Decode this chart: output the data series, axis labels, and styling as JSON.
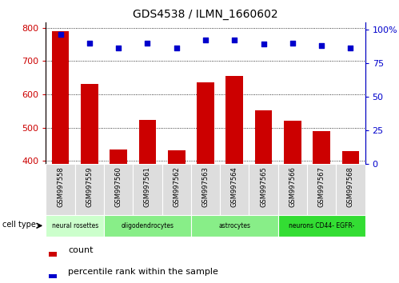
{
  "title": "GDS4538 / ILMN_1660602",
  "samples": [
    "GSM997558",
    "GSM997559",
    "GSM997560",
    "GSM997561",
    "GSM997562",
    "GSM997563",
    "GSM997564",
    "GSM997565",
    "GSM997566",
    "GSM997567",
    "GSM997568"
  ],
  "bar_values": [
    790,
    630,
    435,
    522,
    432,
    635,
    655,
    552,
    520,
    490,
    428
  ],
  "dot_values": [
    96,
    90,
    86,
    90,
    86,
    92,
    92,
    89,
    90,
    88,
    86
  ],
  "bar_color": "#cc0000",
  "dot_color": "#0000cc",
  "ylim_left": [
    390,
    815
  ],
  "ylim_right": [
    0,
    105
  ],
  "yticks_left": [
    400,
    500,
    600,
    700,
    800
  ],
  "yticks_right": [
    0,
    25,
    50,
    75,
    100
  ],
  "ytick_labels_right": [
    "0",
    "25",
    "50",
    "75",
    "100%"
  ],
  "cell_type_label": "cell type",
  "legend_bar_label": "count",
  "legend_dot_label": "percentile rank within the sample",
  "tick_color_left": "#cc0000",
  "tick_color_right": "#0000cc",
  "xtick_bg": "#dddddd",
  "cell_groups": [
    {
      "label": "neural rosettes",
      "start": 0,
      "end": 2,
      "color": "#ccffcc"
    },
    {
      "label": "oligodendrocytes",
      "start": 2,
      "end": 5,
      "color": "#88ee88"
    },
    {
      "label": "astrocytes",
      "start": 5,
      "end": 8,
      "color": "#88ee88"
    },
    {
      "label": "neurons CD44- EGFR-",
      "start": 8,
      "end": 11,
      "color": "#33dd33"
    }
  ]
}
